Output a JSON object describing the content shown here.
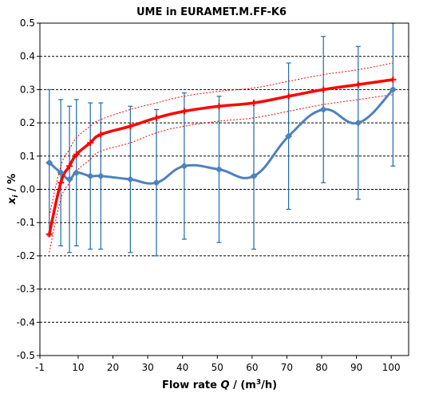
{
  "chart_data": {
    "type": "line",
    "title": "UME in EURAMET.M.FF-K6",
    "xlabel": "Flow rate Q / (m3/h)",
    "ylabel": "xi / %",
    "xlim": [
      -1,
      105
    ],
    "ylim": [
      -0.5,
      0.5
    ],
    "x_ticks": [
      -1,
      10,
      20,
      30,
      40,
      50,
      60,
      70,
      80,
      90,
      100
    ],
    "y_ticks": [
      -0.5,
      -0.4,
      -0.3,
      -0.2,
      -0.1,
      0.0,
      0.1,
      0.2,
      0.3,
      0.4,
      0.5
    ],
    "x_tick_labels": [
      "-1",
      "10",
      "20",
      "30",
      "40",
      "50",
      "60",
      "70",
      "80",
      "90",
      "100"
    ],
    "y_tick_labels": [
      "-0.5",
      "-0.4",
      "-0.3",
      "-0.2",
      "-0.1",
      "0.0",
      "0.1",
      "0.2",
      "0.3",
      "0.4",
      "0.5"
    ],
    "grid": {
      "horizontal_dashed": true,
      "vertical": false
    },
    "series": [
      {
        "style": "smooth line with diamond markers and error bars",
        "color": "#4f81bd",
        "errorbar_color": "#1f6aa5",
        "x": [
          1.7,
          5.0,
          7.5,
          9.5,
          13.5,
          16.5,
          25,
          32.5,
          40.5,
          50.5,
          60.5,
          70.5,
          80.5,
          90.5,
          100.5
        ],
        "y": [
          0.08,
          0.05,
          0.03,
          0.05,
          0.04,
          0.04,
          0.03,
          0.02,
          0.07,
          0.06,
          0.04,
          0.16,
          0.24,
          0.2,
          0.3
        ],
        "err_upper": [
          0.3,
          0.27,
          0.25,
          0.27,
          0.26,
          0.26,
          0.25,
          0.24,
          0.29,
          0.28,
          0.26,
          0.38,
          0.46,
          0.43,
          0.5
        ],
        "err_lower": [
          -0.14,
          -0.17,
          -0.19,
          -0.17,
          -0.18,
          -0.18,
          -0.19,
          -0.2,
          -0.15,
          -0.16,
          -0.18,
          -0.06,
          0.02,
          -0.03,
          0.07
        ]
      },
      {
        "style": "thick smooth line with star markers",
        "color": "#ff0000",
        "x": [
          1.7,
          5.0,
          7.5,
          9.5,
          13.5,
          16.5,
          25,
          32.5,
          40.5,
          50.5,
          60.5,
          70.5,
          80.5,
          90.5,
          100.5
        ],
        "y": [
          -0.135,
          0.02,
          0.07,
          0.105,
          0.14,
          0.165,
          0.19,
          0.215,
          0.235,
          0.25,
          0.26,
          0.28,
          0.3,
          0.315,
          0.33
        ]
      },
      {
        "style": "thin dashed line (upper bound)",
        "color": "#ff0000",
        "x": [
          1.7,
          5.0,
          7.5,
          9.5,
          13.5,
          16.5,
          25,
          32.5,
          40.5,
          50.5,
          60.5,
          70.5,
          80.5,
          90.5,
          100.5
        ],
        "y": [
          -0.08,
          0.07,
          0.12,
          0.155,
          0.19,
          0.21,
          0.24,
          0.26,
          0.28,
          0.295,
          0.305,
          0.325,
          0.345,
          0.36,
          0.38
        ]
      },
      {
        "style": "thin dashed line (lower bound)",
        "color": "#ff0000",
        "x": [
          1.7,
          5.0,
          7.5,
          9.5,
          13.5,
          16.5,
          25,
          32.5,
          40.5,
          50.5,
          60.5,
          70.5,
          80.5,
          90.5,
          100.5
        ],
        "y": [
          -0.19,
          -0.03,
          0.02,
          0.055,
          0.09,
          0.115,
          0.14,
          0.17,
          0.19,
          0.205,
          0.215,
          0.235,
          0.255,
          0.27,
          0.285
        ]
      }
    ]
  }
}
